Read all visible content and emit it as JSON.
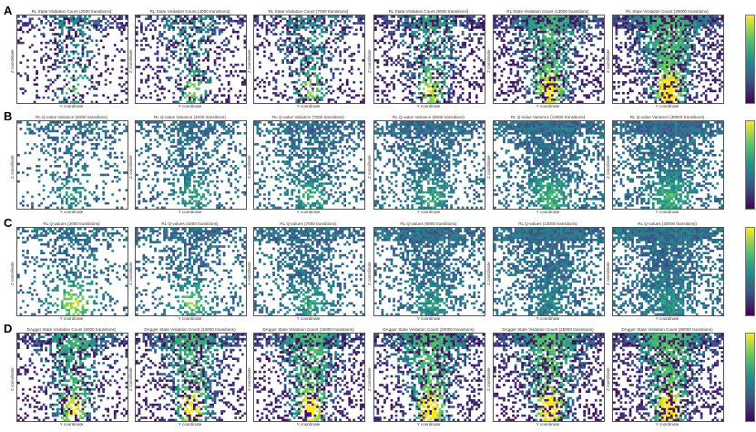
{
  "chart_data": {
    "type": "heatmap",
    "figure": "grid of 2D spatial heatmaps, 4 rows x 6 columns, viridis colormap",
    "xlabel": "Y coordinate",
    "ylabel": "Z coordinate",
    "colormap": "viridis",
    "rows": [
      {
        "label": "A",
        "metric": "RL State Visitation Count",
        "colorbar_ticks": [
          "10^2",
          "10^1",
          "10^0"
        ],
        "panels": [
          {
            "title": "RL State Visitation Count (2000 transitions)",
            "transitions": 2000,
            "coverage": 0.35,
            "intensity": 0.55
          },
          {
            "title": "RL State Visitation Count (4000 transitions)",
            "transitions": 4000,
            "coverage": 0.45,
            "intensity": 0.6
          },
          {
            "title": "RL State Visitation Count (7000 transitions)",
            "transitions": 7000,
            "coverage": 0.5,
            "intensity": 0.65
          },
          {
            "title": "RL State Visitation Count (9000 transitions)",
            "transitions": 9000,
            "coverage": 0.62,
            "intensity": 0.72
          },
          {
            "title": "RL State Visitation Count (13000 transitions)",
            "transitions": 13000,
            "coverage": 0.75,
            "intensity": 0.85
          },
          {
            "title": "RL State Visitation Count (30000 transitions)",
            "transitions": 30000,
            "coverage": 0.85,
            "intensity": 0.95
          }
        ]
      },
      {
        "label": "B",
        "metric": "RL Q-value Variance",
        "colorbar_ticks": [
          "10^0",
          "10^-1",
          "10^-2"
        ],
        "panels": [
          {
            "title": "RL Q-value Variance (2000 transitions)",
            "transitions": 2000,
            "coverage": 0.35,
            "intensity": 0.45
          },
          {
            "title": "RL Q-value Variance (4000 transitions)",
            "transitions": 4000,
            "coverage": 0.45,
            "intensity": 0.5
          },
          {
            "title": "RL Q-value Variance (7000 transitions)",
            "transitions": 7000,
            "coverage": 0.55,
            "intensity": 0.5
          },
          {
            "title": "RL Q-value Variance (9000 transitions)",
            "transitions": 9000,
            "coverage": 0.65,
            "intensity": 0.5
          },
          {
            "title": "RL Q-value Variance (13000 transitions)",
            "transitions": 13000,
            "coverage": 0.75,
            "intensity": 0.55
          },
          {
            "title": "RL Q-value Variance (30000 transitions)",
            "transitions": 30000,
            "coverage": 0.8,
            "intensity": 0.55
          }
        ]
      },
      {
        "label": "C",
        "metric": "RL Q-values",
        "colorbar_ticks": [
          "0.8",
          "0.6",
          "0.4",
          "0.2"
        ],
        "panels": [
          {
            "title": "RL Q-values (2000 transitions)",
            "transitions": 2000,
            "coverage": 0.4,
            "intensity": 0.7
          },
          {
            "title": "RL Q-values (4000 transitions)",
            "transitions": 4000,
            "coverage": 0.5,
            "intensity": 0.6
          },
          {
            "title": "RL Q-values (7000 transitions)",
            "transitions": 7000,
            "coverage": 0.58,
            "intensity": 0.5
          },
          {
            "title": "RL Q-values (9000 transitions)",
            "transitions": 9000,
            "coverage": 0.68,
            "intensity": 0.45
          },
          {
            "title": "RL Q-values (13000 transitions)",
            "transitions": 13000,
            "coverage": 0.78,
            "intensity": 0.42
          },
          {
            "title": "RL Q-values (30000 transitions)",
            "transitions": 30000,
            "coverage": 0.85,
            "intensity": 0.45
          }
        ]
      },
      {
        "label": "D",
        "metric": "DAgger State Visitation Count",
        "colorbar_ticks": [
          "10^2",
          "10^1",
          "10^0"
        ],
        "panels": [
          {
            "title": "DAgger State Visitation Count (5000 transitions)",
            "transitions": 5000,
            "coverage": 0.55,
            "intensity": 0.8
          },
          {
            "title": "DAgger State Visitation Count (10000 transitions)",
            "transitions": 10000,
            "coverage": 0.62,
            "intensity": 0.85
          },
          {
            "title": "DAgger State Visitation Count (15000 transitions)",
            "transitions": 15000,
            "coverage": 0.68,
            "intensity": 0.9
          },
          {
            "title": "DAgger State Visitation Count (20000 transitions)",
            "transitions": 20000,
            "coverage": 0.72,
            "intensity": 0.92
          },
          {
            "title": "DAgger State Visitation Count (25000 transitions)",
            "transitions": 25000,
            "coverage": 0.75,
            "intensity": 0.95
          },
          {
            "title": "DAgger State Visitation Count (30000 transitions)",
            "transitions": 30000,
            "coverage": 0.78,
            "intensity": 0.97
          }
        ]
      }
    ]
  }
}
